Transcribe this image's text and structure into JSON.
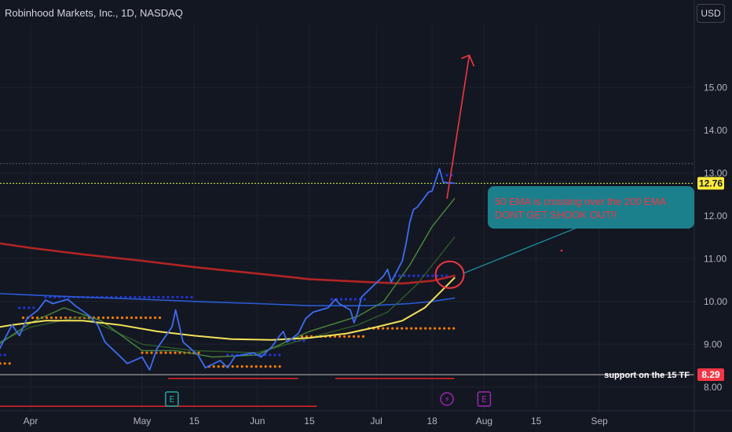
{
  "header": {
    "title": "Robinhood Markets, Inc., 1D, NASDAQ",
    "currency_button": "USD"
  },
  "colors": {
    "background": "#131722",
    "price_line": "#3d6cf0",
    "ema50": "#f3e35a",
    "ema200": "#b22424",
    "ema_blue": "#2a5bd7",
    "ema_green": "#4b8a3c",
    "ema_dark_green": "#2f5a2a",
    "orange_dots": "#f57c00",
    "blue_dots": "#2433d8",
    "annotation_box": "#1c7f8c",
    "annotation_text": "#f23645",
    "arrow": "#f23645",
    "last_price_badge": "#ffeb3b"
  },
  "chart_data": {
    "type": "line",
    "y_axis": {
      "min": 7.2,
      "max": 16.2,
      "ticks": [
        "8.00",
        "9.00",
        "10.00",
        "11.00",
        "12.00",
        "13.00",
        "14.00",
        "15.00"
      ]
    },
    "x_axis": {
      "start": "2023-03-20",
      "end": "2023-09-08",
      "ticks": [
        {
          "label": "Apr",
          "date": "2023-04-01"
        },
        {
          "label": "May",
          "date": "2023-05-01"
        },
        {
          "label": "15",
          "date": "2023-05-15"
        },
        {
          "label": "Jun",
          "date": "2023-06-01"
        },
        {
          "label": "15",
          "date": "2023-06-15"
        },
        {
          "label": "Jul",
          "date": "2023-07-03"
        },
        {
          "label": "18",
          "date": "2023-07-18"
        },
        {
          "label": "Aug",
          "date": "2023-08-01"
        },
        {
          "label": "15",
          "date": "2023-08-15"
        },
        {
          "label": "Sep",
          "date": "2023-09-01"
        }
      ]
    },
    "series": [
      {
        "key": "price",
        "data": [
          [
            "2023-03-20",
            8.8
          ],
          [
            "2023-03-22",
            8.62
          ],
          [
            "2023-03-24",
            8.95
          ],
          [
            "2023-03-27",
            9.45
          ],
          [
            "2023-03-29",
            9.2
          ],
          [
            "2023-03-31",
            9.6
          ],
          [
            "2023-04-03",
            9.8
          ],
          [
            "2023-04-05",
            10.03
          ],
          [
            "2023-04-07",
            9.95
          ],
          [
            "2023-04-11",
            10.05
          ],
          [
            "2023-04-13",
            9.9
          ],
          [
            "2023-04-17",
            9.65
          ],
          [
            "2023-04-19",
            9.45
          ],
          [
            "2023-04-21",
            9.05
          ],
          [
            "2023-04-25",
            8.72
          ],
          [
            "2023-04-27",
            8.55
          ],
          [
            "2023-05-01",
            8.7
          ],
          [
            "2023-05-03",
            8.4
          ],
          [
            "2023-05-05",
            8.9
          ],
          [
            "2023-05-09",
            9.4
          ],
          [
            "2023-05-10",
            9.8
          ],
          [
            "2023-05-12",
            9.05
          ],
          [
            "2023-05-16",
            8.75
          ],
          [
            "2023-05-18",
            8.45
          ],
          [
            "2023-05-22",
            8.62
          ],
          [
            "2023-05-24",
            8.45
          ],
          [
            "2023-05-26",
            8.72
          ],
          [
            "2023-05-31",
            8.8
          ],
          [
            "2023-06-02",
            8.7
          ],
          [
            "2023-06-05",
            8.95
          ],
          [
            "2023-06-07",
            9.2
          ],
          [
            "2023-06-08",
            9.3
          ],
          [
            "2023-06-09",
            9.05
          ],
          [
            "2023-06-12",
            9.25
          ],
          [
            "2023-06-14",
            9.6
          ],
          [
            "2023-06-16",
            9.75
          ],
          [
            "2023-06-20",
            9.85
          ],
          [
            "2023-06-22",
            10.05
          ],
          [
            "2023-06-23",
            9.95
          ],
          [
            "2023-06-26",
            9.8
          ],
          [
            "2023-06-27",
            9.5
          ],
          [
            "2023-06-28",
            9.75
          ],
          [
            "2023-06-29",
            10.1
          ],
          [
            "2023-07-05",
            10.6
          ],
          [
            "2023-07-06",
            10.75
          ],
          [
            "2023-07-07",
            10.45
          ],
          [
            "2023-07-10",
            10.95
          ],
          [
            "2023-07-11",
            11.35
          ],
          [
            "2023-07-12",
            11.85
          ],
          [
            "2023-07-13",
            12.15
          ],
          [
            "2023-07-14",
            12.2
          ],
          [
            "2023-07-17",
            12.55
          ],
          [
            "2023-07-18",
            12.58
          ],
          [
            "2023-07-20",
            13.1
          ],
          [
            "2023-07-21",
            12.78
          ],
          [
            "2023-07-24",
            12.76
          ]
        ]
      },
      {
        "key": "ema_fast_green",
        "data": [
          [
            "2023-03-20",
            8.8
          ],
          [
            "2023-04-01",
            9.5
          ],
          [
            "2023-04-10",
            9.85
          ],
          [
            "2023-04-20",
            9.55
          ],
          [
            "2023-05-01",
            8.85
          ],
          [
            "2023-05-10",
            8.85
          ],
          [
            "2023-05-20",
            8.7
          ],
          [
            "2023-06-01",
            8.75
          ],
          [
            "2023-06-15",
            9.3
          ],
          [
            "2023-06-28",
            9.65
          ],
          [
            "2023-07-05",
            10.0
          ],
          [
            "2023-07-12",
            10.85
          ],
          [
            "2023-07-18",
            11.75
          ],
          [
            "2023-07-24",
            12.4
          ]
        ]
      },
      {
        "key": "ema_mid_green",
        "data": [
          [
            "2023-03-20",
            8.9
          ],
          [
            "2023-04-01",
            9.4
          ],
          [
            "2023-04-15",
            9.65
          ],
          [
            "2023-05-01",
            9.0
          ],
          [
            "2023-05-15",
            8.85
          ],
          [
            "2023-06-01",
            8.8
          ],
          [
            "2023-06-15",
            9.15
          ],
          [
            "2023-06-28",
            9.45
          ],
          [
            "2023-07-06",
            9.75
          ],
          [
            "2023-07-14",
            10.4
          ],
          [
            "2023-07-24",
            11.5
          ]
        ]
      },
      {
        "key": "ema50",
        "data": [
          [
            "2023-03-20",
            9.35
          ],
          [
            "2023-03-27",
            9.45
          ],
          [
            "2023-04-05",
            9.55
          ],
          [
            "2023-04-15",
            9.55
          ],
          [
            "2023-04-25",
            9.45
          ],
          [
            "2023-05-05",
            9.3
          ],
          [
            "2023-05-15",
            9.2
          ],
          [
            "2023-05-25",
            9.12
          ],
          [
            "2023-06-05",
            9.1
          ],
          [
            "2023-06-15",
            9.15
          ],
          [
            "2023-06-25",
            9.25
          ],
          [
            "2023-07-03",
            9.4
          ],
          [
            "2023-07-10",
            9.55
          ],
          [
            "2023-07-16",
            9.85
          ],
          [
            "2023-07-20",
            10.2
          ],
          [
            "2023-07-24",
            10.55
          ]
        ]
      },
      {
        "key": "ema200",
        "data": [
          [
            "2023-03-20",
            11.4
          ],
          [
            "2023-04-01",
            11.25
          ],
          [
            "2023-04-15",
            11.1
          ],
          [
            "2023-05-01",
            10.95
          ],
          [
            "2023-05-15",
            10.8
          ],
          [
            "2023-06-01",
            10.65
          ],
          [
            "2023-06-15",
            10.52
          ],
          [
            "2023-07-01",
            10.45
          ],
          [
            "2023-07-10",
            10.42
          ],
          [
            "2023-07-18",
            10.48
          ],
          [
            "2023-07-24",
            10.6
          ]
        ]
      },
      {
        "key": "ema_blue",
        "data": [
          [
            "2023-03-20",
            10.2
          ],
          [
            "2023-04-01",
            10.15
          ],
          [
            "2023-04-15",
            10.1
          ],
          [
            "2023-05-01",
            10.05
          ],
          [
            "2023-05-15",
            10.0
          ],
          [
            "2023-06-01",
            9.95
          ],
          [
            "2023-06-15",
            9.9
          ],
          [
            "2023-07-01",
            9.9
          ],
          [
            "2023-07-12",
            9.95
          ],
          [
            "2023-07-18",
            10.0
          ],
          [
            "2023-07-24",
            10.08
          ]
        ]
      }
    ],
    "dot_segments": [
      {
        "color": "orange",
        "y": 8.55,
        "from": "2023-03-20",
        "to": "2023-03-27"
      },
      {
        "color": "orange",
        "y": 9.62,
        "from": "2023-03-30",
        "to": "2023-05-07"
      },
      {
        "color": "orange",
        "y": 8.8,
        "from": "2023-05-01",
        "to": "2023-05-17"
      },
      {
        "color": "orange",
        "y": 8.48,
        "from": "2023-05-19",
        "to": "2023-06-08"
      },
      {
        "color": "orange",
        "y": 9.18,
        "from": "2023-06-13",
        "to": "2023-06-30"
      },
      {
        "color": "orange",
        "y": 9.37,
        "from": "2023-07-01",
        "to": "2023-07-25"
      },
      {
        "color": "blue",
        "y": 8.75,
        "from": "2023-03-20",
        "to": "2023-03-26"
      },
      {
        "color": "blue",
        "y": 9.85,
        "from": "2023-03-29",
        "to": "2023-04-03"
      },
      {
        "color": "blue",
        "y": 10.1,
        "from": "2023-04-05",
        "to": "2023-05-15"
      },
      {
        "color": "blue",
        "y": 8.75,
        "from": "2023-05-24",
        "to": "2023-06-07"
      },
      {
        "color": "blue",
        "y": 9.08,
        "from": "2023-06-11",
        "to": "2023-06-14"
      },
      {
        "color": "blue",
        "y": 10.05,
        "from": "2023-06-21",
        "to": "2023-07-01"
      },
      {
        "color": "blue",
        "y": 10.6,
        "from": "2023-07-08",
        "to": "2023-07-23"
      },
      {
        "color": "blue",
        "y": 12.95,
        "from": "2023-07-22",
        "to": "2023-07-24"
      }
    ],
    "horizontal_levels": [
      {
        "y": 12.76,
        "style": "dotted",
        "color": "#d7f542",
        "label": "12.76",
        "badge_color": "#ffeb3b"
      },
      {
        "y": 13.22,
        "style": "dotted",
        "color": "#5d606b"
      },
      {
        "y": 8.29,
        "style": "solid",
        "color": "#bcbcbc",
        "label": "8.29",
        "badge_color": "#f23645",
        "annotation": "support on the 15 TF"
      }
    ],
    "red_segments": [
      {
        "y": 8.2,
        "from": "2023-05-08",
        "to": "2023-06-12"
      },
      {
        "y": 8.2,
        "from": "2023-06-22",
        "to": "2023-07-24"
      },
      {
        "y": 7.55,
        "from": "2023-03-20",
        "to": "2023-06-17"
      }
    ],
    "arrow": {
      "from": [
        "2023-07-22",
        12.4
      ],
      "to": [
        "2023-07-28",
        15.75
      ]
    },
    "callout": {
      "text_lines": [
        "50 EMA is crossing over the 200 EMA",
        "DONT GET SHOOK OUT!!"
      ],
      "anchor": [
        "2023-07-24",
        10.55
      ]
    },
    "events": [
      {
        "date": "2023-05-09",
        "symbol": "E",
        "color": "#26a69a"
      },
      {
        "date": "2023-07-22",
        "symbol": "⚡",
        "color": "#9c27b0"
      },
      {
        "date": "2023-08-01",
        "symbol": "E",
        "color": "#9c27b0"
      }
    ]
  }
}
